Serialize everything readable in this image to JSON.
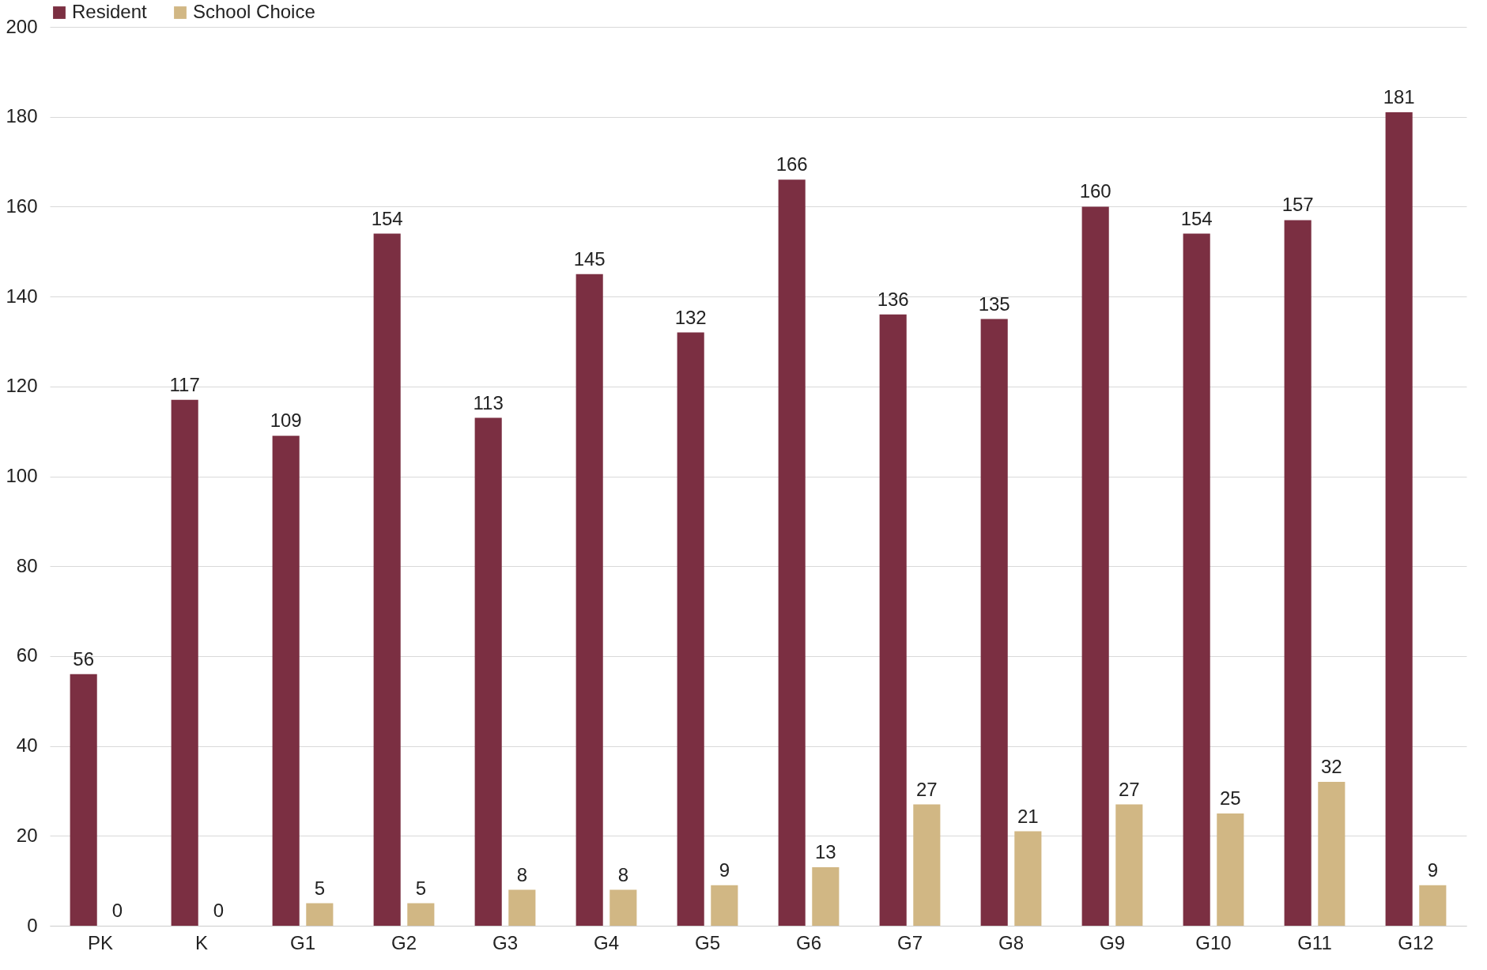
{
  "chart_data": {
    "type": "bar",
    "categories": [
      "PK",
      "K",
      "G1",
      "G2",
      "G3",
      "G4",
      "G5",
      "G6",
      "G7",
      "G8",
      "G9",
      "G10",
      "G11",
      "G12"
    ],
    "series": [
      {
        "name": "Resident",
        "color": "#7b2f42",
        "values": [
          56,
          117,
          109,
          154,
          113,
          145,
          132,
          166,
          136,
          135,
          160,
          154,
          157,
          181
        ]
      },
      {
        "name": "School Choice",
        "color": "#d1b784",
        "values": [
          0,
          0,
          5,
          5,
          8,
          8,
          9,
          13,
          27,
          21,
          27,
          25,
          32,
          9
        ]
      }
    ],
    "ylim": [
      0,
      200
    ],
    "yticks": [
      0,
      20,
      40,
      60,
      80,
      100,
      120,
      140,
      160,
      180,
      200
    ],
    "grid": "y",
    "legend": "top",
    "data_labels": true
  }
}
